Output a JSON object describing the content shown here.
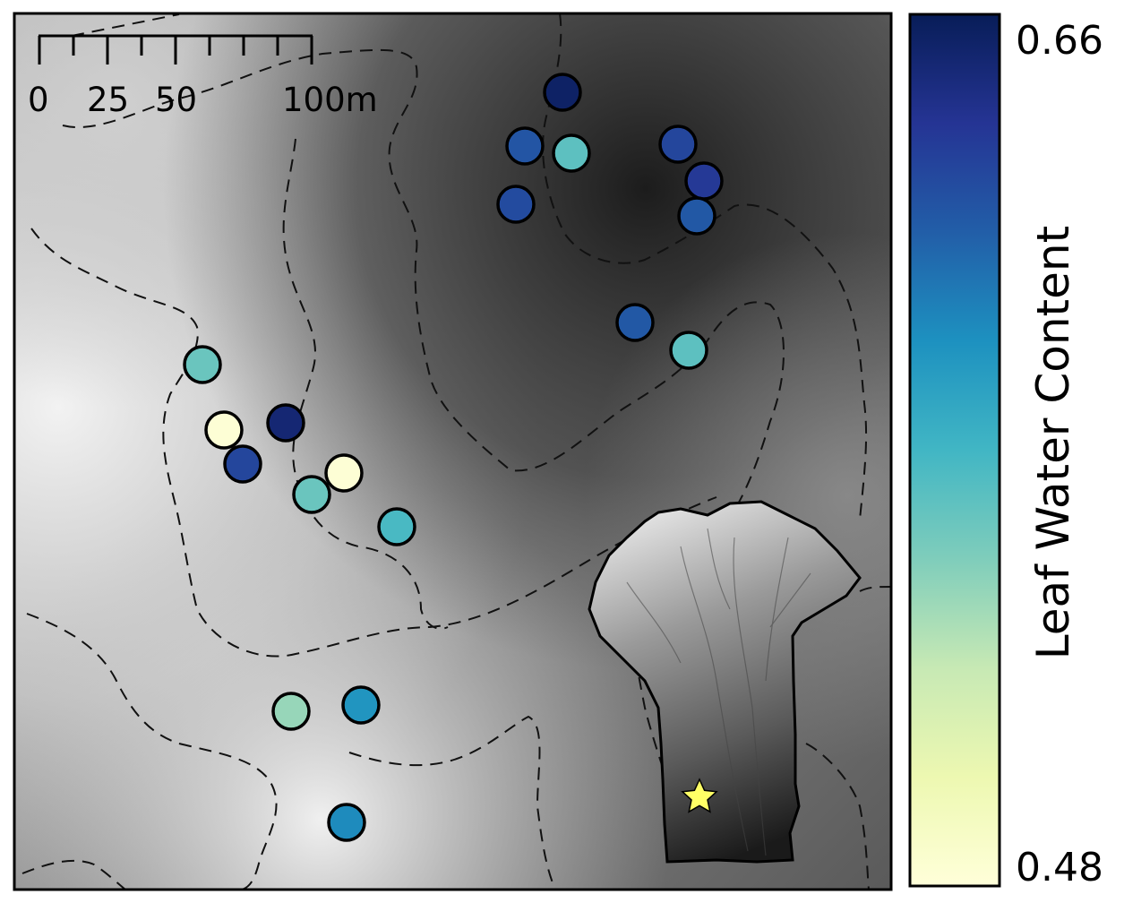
{
  "map": {
    "contour_style": "dashed",
    "background": "grayscale elevation shading"
  },
  "scale_bar": {
    "labels": [
      "0",
      "25",
      "50",
      "100m"
    ],
    "distances_m": [
      0,
      25,
      50,
      100
    ]
  },
  "colorbar": {
    "title": "Leaf Water Content",
    "max_label": "0.66",
    "min_label": "0.48",
    "max": 0.66,
    "min": 0.48,
    "colors": [
      "#ffffd9",
      "#edf8b1",
      "#c7e9b4",
      "#7fcdbb",
      "#41b6c4",
      "#1d91c0",
      "#225ea8",
      "#253494",
      "#081d58"
    ]
  },
  "sample_points": [
    {
      "value": 0.655
    },
    {
      "value": 0.62
    },
    {
      "value": 0.56
    },
    {
      "value": 0.625
    },
    {
      "value": 0.628
    },
    {
      "value": 0.635
    },
    {
      "value": 0.618
    },
    {
      "value": 0.618
    },
    {
      "value": 0.56
    },
    {
      "value": 0.555
    },
    {
      "value": 0.482
    },
    {
      "value": 0.628
    },
    {
      "value": 0.65
    },
    {
      "value": 0.555
    },
    {
      "value": 0.482
    },
    {
      "value": 0.567
    },
    {
      "value": 0.54
    },
    {
      "value": 0.59
    },
    {
      "value": 0.595
    },
    {
      "value": 0.595
    }
  ],
  "inset": {
    "description": "watershed elevation inset",
    "marker": "star",
    "marker_color": "#ffff66"
  }
}
